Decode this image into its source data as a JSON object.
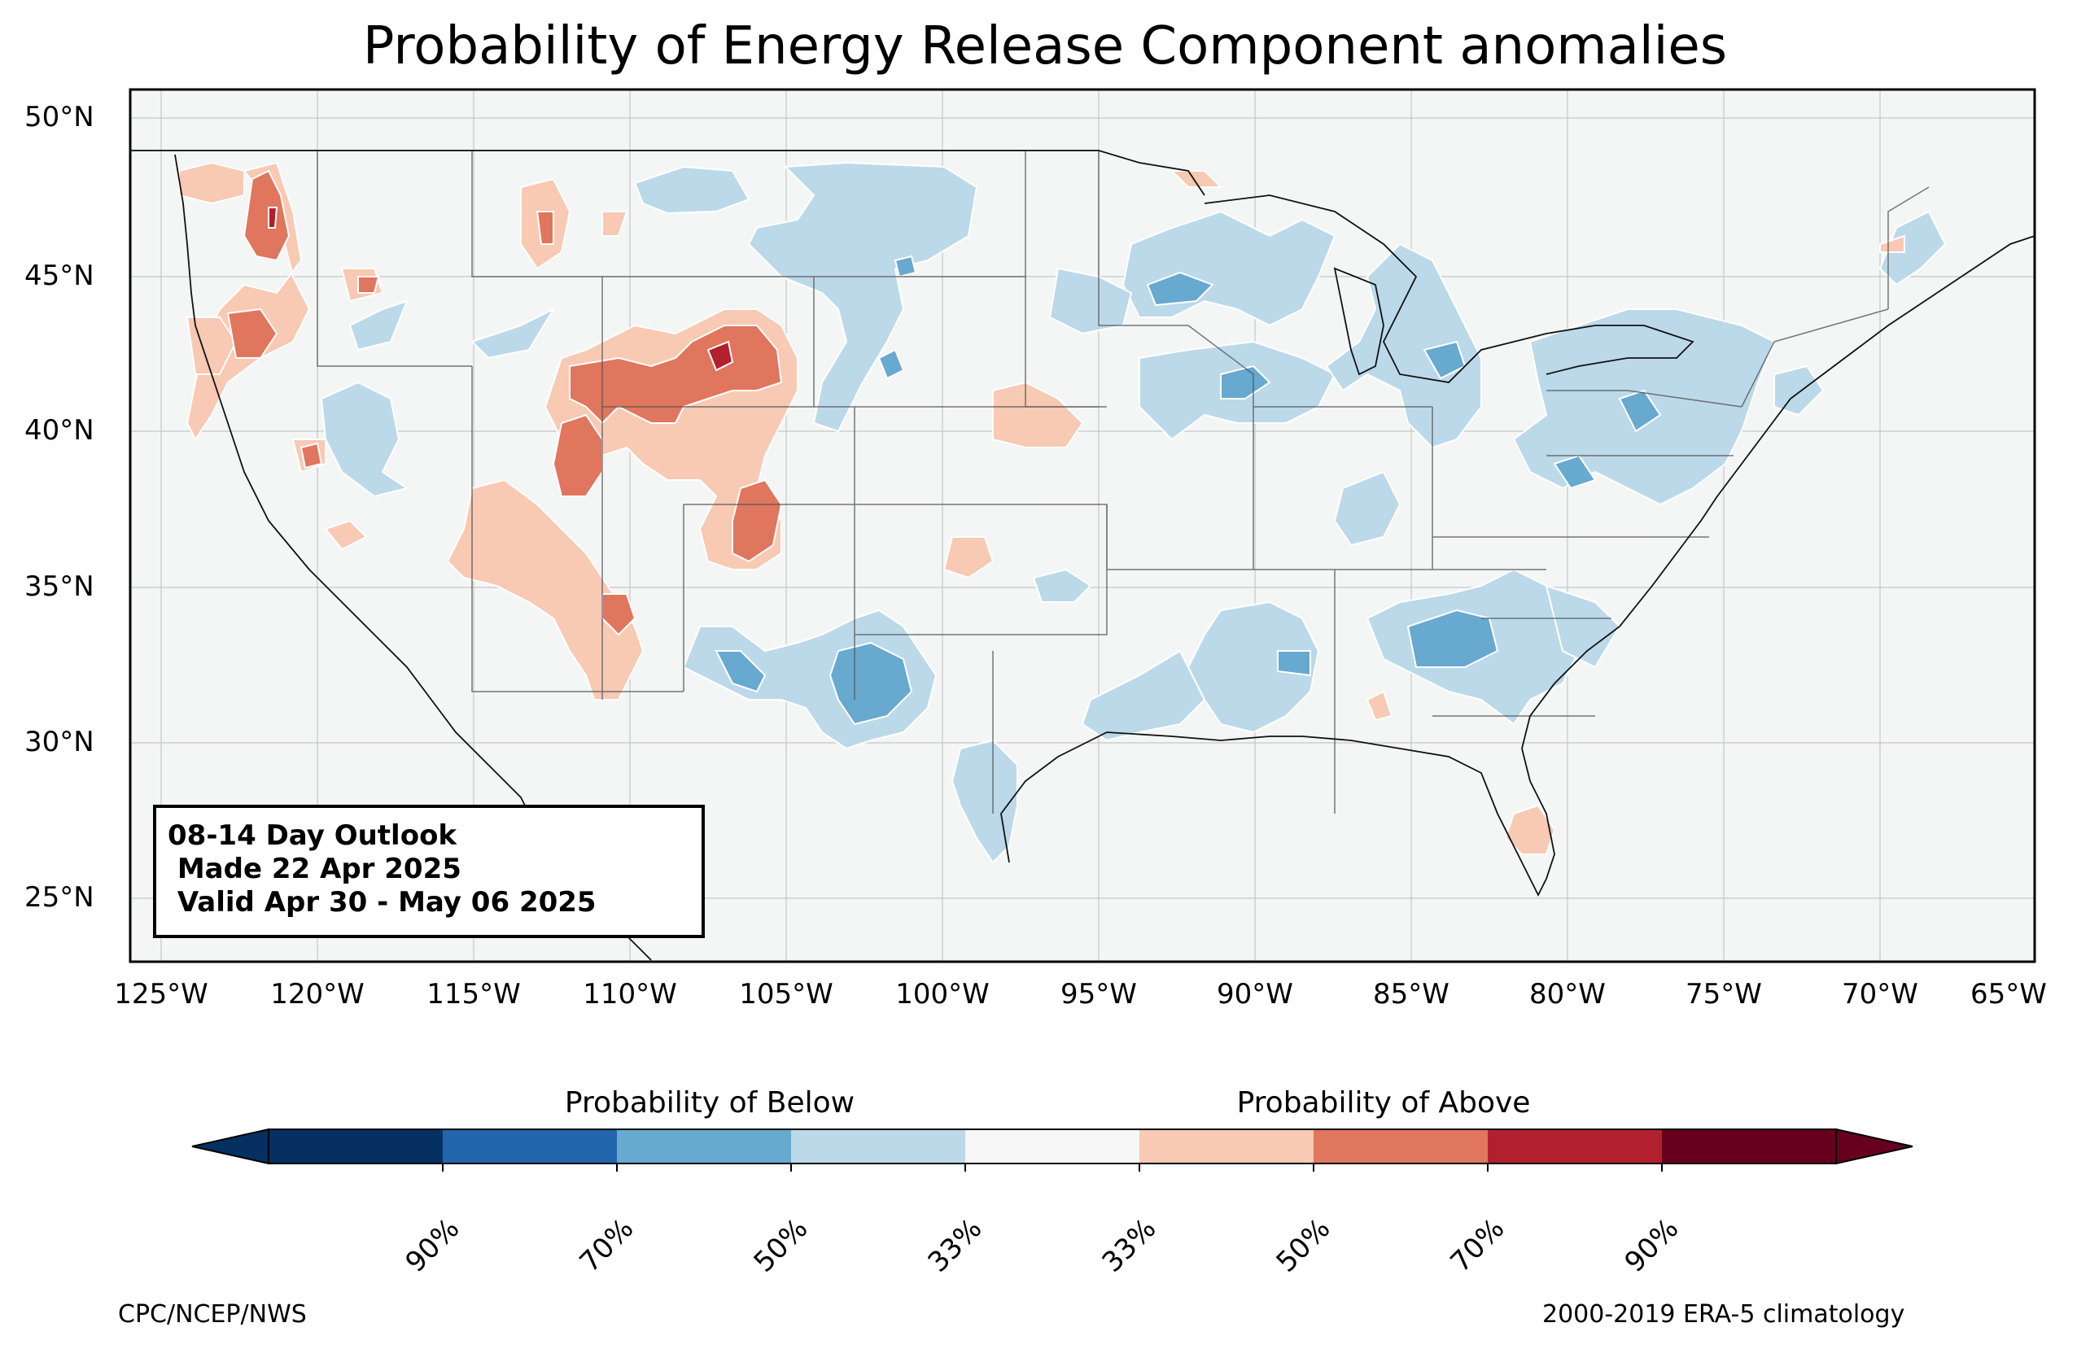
{
  "title": "Probability of Energy Release Component anomalies",
  "map": {
    "y_ticks": [
      "50°N",
      "45°N",
      "40°N",
      "35°N",
      "30°N",
      "25°N"
    ],
    "x_ticks": [
      "125°W",
      "120°W",
      "115°W",
      "110°W",
      "105°W",
      "100°W",
      "95°W",
      "90°W",
      "85°W",
      "80°W",
      "75°W",
      "70°W",
      "65°W"
    ],
    "extent": {
      "lon": [
        -126,
        -65
      ],
      "lat": [
        23,
        51
      ]
    },
    "background_color": "#f4f6f5"
  },
  "infobox": {
    "line1": "08-14 Day Outlook",
    "line2": " Made 22 Apr 2025",
    "line3": " Valid Apr 30 - May 06 2025"
  },
  "colorbar": {
    "below_label": "Probability of Below",
    "above_label": "Probability of Above",
    "ticks": [
      "90%",
      "70%",
      "50%",
      "33%",
      "33%",
      "50%",
      "70%",
      "90%"
    ],
    "colors": [
      "#053061",
      "#2166ac",
      "#67a9cf",
      "#bcd9ea",
      "#f7f7f7",
      "#f8c9b3",
      "#e0765d",
      "#b2202d",
      "#67001f"
    ]
  },
  "footer": {
    "left": "CPC/NCEP/NWS",
    "right": "2000-2019 ERA-5 climatology"
  }
}
